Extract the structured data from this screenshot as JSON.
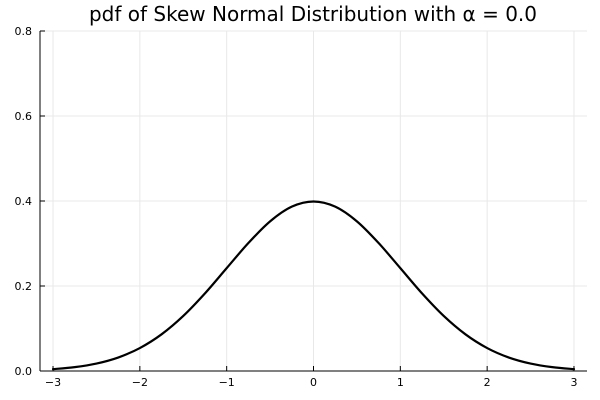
{
  "chart_data": {
    "type": "line",
    "title": "pdf of Skew Normal Distribution with α =  0.0",
    "xlabel": "",
    "ylabel": "",
    "xlim": [
      -3.15,
      3.15
    ],
    "ylim": [
      0,
      0.8
    ],
    "x_ticks": [
      -3,
      -2,
      -1,
      0,
      1,
      2,
      3
    ],
    "x_tick_labels": [
      "−3",
      "−2",
      "−1",
      "0",
      "1",
      "2",
      "3"
    ],
    "y_ticks": [
      0,
      0.2,
      0.4,
      0.6,
      0.8
    ],
    "y_tick_labels": [
      "0.0",
      "0.2",
      "0.4",
      "0.6",
      "0.8"
    ],
    "grid": true,
    "legend": "none",
    "series": [
      {
        "color": "#000000",
        "x": [
          -3.0,
          -2.75,
          -2.5,
          -2.25,
          -2.0,
          -1.75,
          -1.5,
          -1.25,
          -1.0,
          -0.75,
          -0.5,
          -0.25,
          0.0,
          0.25,
          0.5,
          0.75,
          1.0,
          1.25,
          1.5,
          1.75,
          2.0,
          2.25,
          2.5,
          2.75,
          3.0
        ],
        "y": [
          0.0044,
          0.0091,
          0.0175,
          0.0317,
          0.054,
          0.0863,
          0.1295,
          0.1826,
          0.242,
          0.3011,
          0.3521,
          0.3867,
          0.3989,
          0.3867,
          0.3521,
          0.3011,
          0.242,
          0.1826,
          0.1295,
          0.0863,
          0.054,
          0.0317,
          0.0175,
          0.0091,
          0.0044
        ]
      }
    ]
  }
}
